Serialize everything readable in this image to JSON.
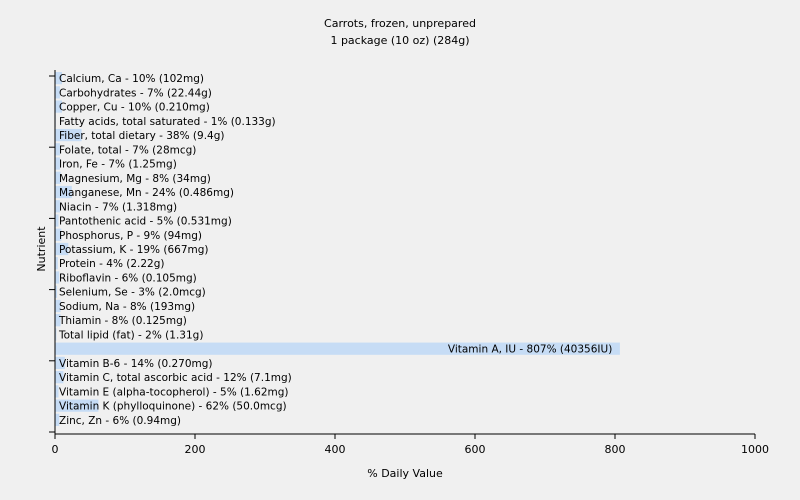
{
  "chart_data": {
    "type": "bar",
    "orientation": "horizontal",
    "title": "Carrots, frozen, unprepared",
    "subtitle": "1 package (10 oz) (284g)",
    "xlabel": "% Daily Value",
    "ylabel": "Nutrient",
    "xlim": [
      0,
      1000
    ],
    "xticks": [
      "0",
      "200",
      "400",
      "600",
      "800",
      "1000"
    ],
    "grid": false,
    "legend": "none",
    "bar_color": "#c6dcf5",
    "categories": [
      "Calcium, Ca",
      "Carbohydrates",
      "Copper, Cu",
      "Fatty acids, total saturated",
      "Fiber, total dietary",
      "Folate, total",
      "Iron, Fe",
      "Magnesium, Mg",
      "Manganese, Mn",
      "Niacin",
      "Pantothenic acid",
      "Phosphorus, P",
      "Potassium, K",
      "Protein",
      "Riboflavin",
      "Selenium, Se",
      "Sodium, Na",
      "Thiamin",
      "Total lipid (fat)",
      "Vitamin A, IU",
      "Vitamin B-6",
      "Vitamin C, total ascorbic acid",
      "Vitamin E (alpha-tocopherol)",
      "Vitamin K (phylloquinone)",
      "Zinc, Zn"
    ],
    "values": [
      10,
      7,
      10,
      1,
      38,
      7,
      7,
      8,
      24,
      7,
      5,
      9,
      19,
      4,
      6,
      3,
      8,
      8,
      2,
      807,
      14,
      12,
      5,
      62,
      6
    ],
    "labels": [
      "Calcium, Ca - 10% (102mg)",
      "Carbohydrates - 7% (22.44g)",
      "Copper, Cu - 10% (0.210mg)",
      "Fatty acids, total saturated - 1% (0.133g)",
      "Fiber, total dietary - 38% (9.4g)",
      "Folate, total - 7% (28mcg)",
      "Iron, Fe - 7% (1.25mg)",
      "Magnesium, Mg - 8% (34mg)",
      "Manganese, Mn - 24% (0.486mg)",
      "Niacin - 7% (1.318mg)",
      "Pantothenic acid - 5% (0.531mg)",
      "Phosphorus, P - 9% (94mg)",
      "Potassium, K - 19% (667mg)",
      "Protein - 4% (2.22g)",
      "Riboflavin - 6% (0.105mg)",
      "Selenium, Se - 3% (2.0mcg)",
      "Sodium, Na - 8% (193mg)",
      "Thiamin - 8% (0.125mg)",
      "Total lipid (fat) - 2% (1.31g)",
      "Vitamin A, IU - 807% (40356IU)",
      "Vitamin B-6 - 14% (0.270mg)",
      "Vitamin C, total ascorbic acid - 12% (7.1mg)",
      "Vitamin E (alpha-tocopherol) - 5% (1.62mg)",
      "Vitamin K (phylloquinone) - 62% (50.0mcg)",
      "Zinc, Zn - 6% (0.94mg)"
    ]
  }
}
